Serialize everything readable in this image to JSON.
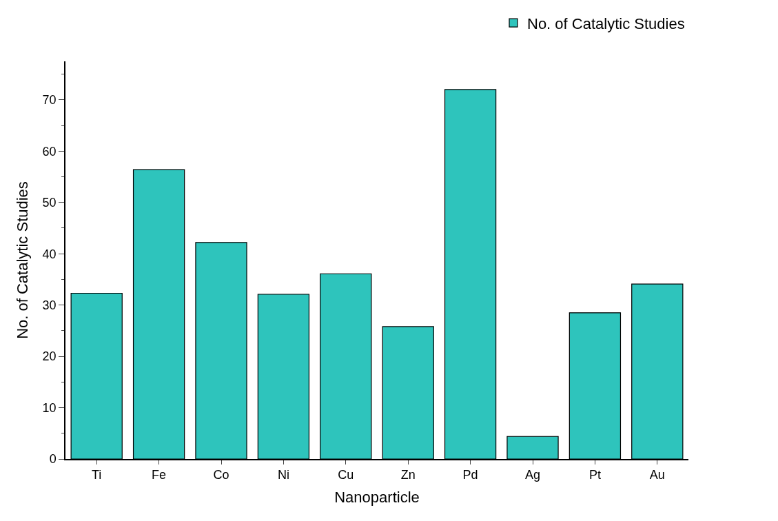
{
  "chart_data": {
    "type": "bar",
    "xlabel": "Nanoparticle",
    "ylabel": "No. of Catalytic Studies",
    "categories": [
      "Ti",
      "Fe",
      "Co",
      "Ni",
      "Cu",
      "Zn",
      "Pd",
      "Ag",
      "Pt",
      "Au"
    ],
    "series": [
      {
        "name": "No. of Catalytic Studies",
        "color": "#2ec4bc",
        "values": [
          32.3,
          56.4,
          42.2,
          32.1,
          36.1,
          25.8,
          72,
          4.4,
          28.5,
          34.1
        ]
      }
    ],
    "ylim": [
      0,
      77.5
    ],
    "yticks": [
      0,
      10,
      20,
      30,
      40,
      50,
      60,
      70
    ],
    "legend": "top right"
  }
}
